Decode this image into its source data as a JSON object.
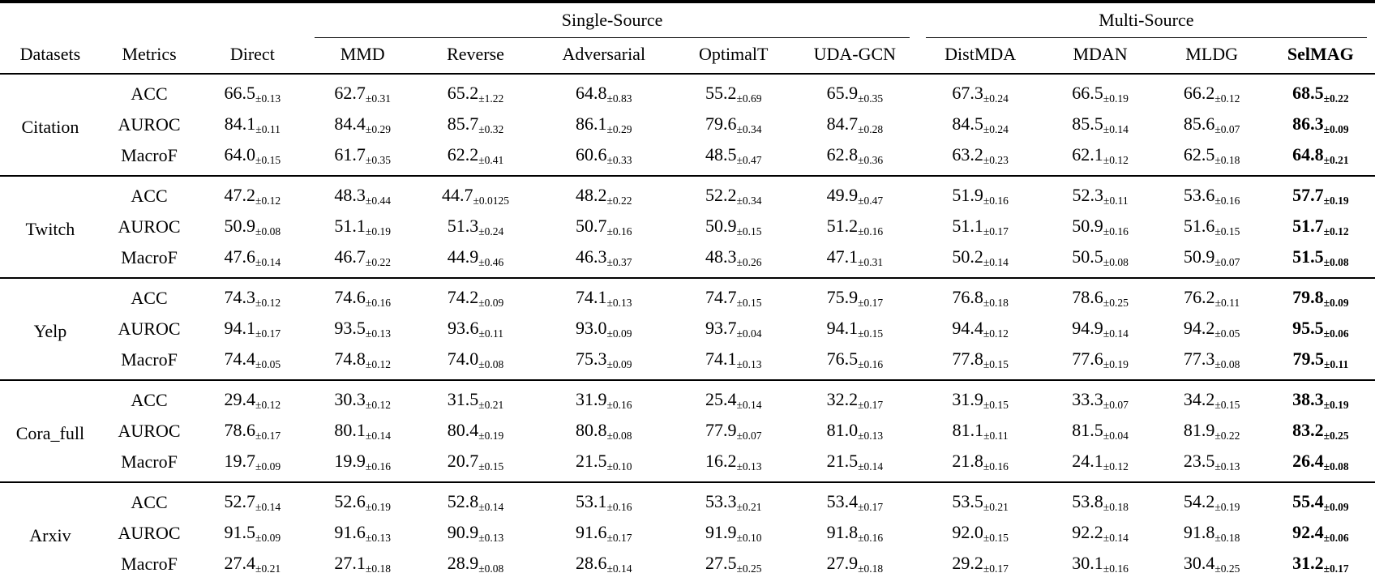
{
  "table": {
    "groups": [
      {
        "label": "Single-Source",
        "span": 5
      },
      {
        "label": "Multi-Source",
        "span": 4
      }
    ],
    "columns": [
      {
        "label": "Datasets"
      },
      {
        "label": "Metrics"
      },
      {
        "label": "Direct"
      },
      {
        "label": "MMD"
      },
      {
        "label": "Reverse"
      },
      {
        "label": "Adversarial"
      },
      {
        "label": "OptimalT"
      },
      {
        "label": "UDA-GCN"
      },
      {
        "label": "DistMDA"
      },
      {
        "label": "MDAN"
      },
      {
        "label": "MLDG"
      },
      {
        "label": "SelMAG"
      }
    ],
    "rows": [
      {
        "dataset": "Citation",
        "metrics": [
          {
            "metric": "ACC",
            "cells": [
              "66.5±0.13",
              "62.7±0.31",
              "65.2±1.22",
              "64.8±0.83",
              "55.2±0.69",
              "65.9±0.35",
              "67.3±0.24",
              "66.5±0.19",
              "66.2±0.12",
              "68.5±0.22"
            ]
          },
          {
            "metric": "AUROC",
            "cells": [
              "84.1±0.11",
              "84.4±0.29",
              "85.7±0.32",
              "86.1±0.29",
              "79.6±0.34",
              "84.7±0.28",
              "84.5±0.24",
              "85.5±0.14",
              "85.6±0.07",
              "86.3±0.09"
            ]
          },
          {
            "metric": "MacroF",
            "cells": [
              "64.0±0.15",
              "61.7±0.35",
              "62.2±0.41",
              "60.6±0.33",
              "48.5±0.47",
              "62.8±0.36",
              "63.2±0.23",
              "62.1±0.12",
              "62.5±0.18",
              "64.8±0.21"
            ]
          }
        ]
      },
      {
        "dataset": "Twitch",
        "metrics": [
          {
            "metric": "ACC",
            "cells": [
              "47.2±0.12",
              "48.3±0.44",
              "44.7±0.0125",
              "48.2±0.22",
              "52.2±0.34",
              "49.9±0.47",
              "51.9±0.16",
              "52.3±0.11",
              "53.6±0.16",
              "57.7±0.19"
            ]
          },
          {
            "metric": "AUROC",
            "cells": [
              "50.9±0.08",
              "51.1±0.19",
              "51.3±0.24",
              "50.7±0.16",
              "50.9±0.15",
              "51.2±0.16",
              "51.1±0.17",
              "50.9±0.16",
              "51.6±0.15",
              "51.7±0.12"
            ]
          },
          {
            "metric": "MacroF",
            "cells": [
              "47.6±0.14",
              "46.7±0.22",
              "44.9±0.46",
              "46.3±0.37",
              "48.3±0.26",
              "47.1±0.31",
              "50.2±0.14",
              "50.5±0.08",
              "50.9±0.07",
              "51.5±0.08"
            ]
          }
        ]
      },
      {
        "dataset": "Yelp",
        "metrics": [
          {
            "metric": "ACC",
            "cells": [
              "74.3±0.12",
              "74.6±0.16",
              "74.2±0.09",
              "74.1±0.13",
              "74.7±0.15",
              "75.9±0.17",
              "76.8±0.18",
              "78.6±0.25",
              "76.2±0.11",
              "79.8±0.09"
            ]
          },
          {
            "metric": "AUROC",
            "cells": [
              "94.1±0.17",
              "93.5±0.13",
              "93.6±0.11",
              "93.0±0.09",
              "93.7±0.04",
              "94.1±0.15",
              "94.4±0.12",
              "94.9±0.14",
              "94.2±0.05",
              "95.5±0.06"
            ]
          },
          {
            "metric": "MacroF",
            "cells": [
              "74.4±0.05",
              "74.8±0.12",
              "74.0±0.08",
              "75.3±0.09",
              "74.1±0.13",
              "76.5±0.16",
              "77.8±0.15",
              "77.6±0.19",
              "77.3±0.08",
              "79.5±0.11"
            ]
          }
        ]
      },
      {
        "dataset": "Cora_full",
        "metrics": [
          {
            "metric": "ACC",
            "cells": [
              "29.4±0.12",
              "30.3±0.12",
              "31.5±0.21",
              "31.9±0.16",
              "25.4±0.14",
              "32.2±0.17",
              "31.9±0.15",
              "33.3±0.07",
              "34.2±0.15",
              "38.3±0.19"
            ]
          },
          {
            "metric": "AUROC",
            "cells": [
              "78.6±0.17",
              "80.1±0.14",
              "80.4±0.19",
              "80.8±0.08",
              "77.9±0.07",
              "81.0±0.13",
              "81.1±0.11",
              "81.5±0.04",
              "81.9±0.22",
              "83.2±0.25"
            ]
          },
          {
            "metric": "MacroF",
            "cells": [
              "19.7±0.09",
              "19.9±0.16",
              "20.7±0.15",
              "21.5±0.10",
              "16.2±0.13",
              "21.5±0.14",
              "21.8±0.16",
              "24.1±0.12",
              "23.5±0.13",
              "26.4±0.08"
            ]
          }
        ]
      },
      {
        "dataset": "Arxiv",
        "metrics": [
          {
            "metric": "ACC",
            "cells": [
              "52.7±0.14",
              "52.6±0.19",
              "52.8±0.14",
              "53.1±0.16",
              "53.3±0.21",
              "53.4±0.17",
              "53.5±0.21",
              "53.8±0.18",
              "54.2±0.19",
              "55.4±0.09"
            ]
          },
          {
            "metric": "AUROC",
            "cells": [
              "91.5±0.09",
              "91.6±0.13",
              "90.9±0.13",
              "91.6±0.17",
              "91.9±0.10",
              "91.8±0.16",
              "92.0±0.15",
              "92.2±0.14",
              "91.8±0.18",
              "92.4±0.06"
            ]
          },
          {
            "metric": "MacroF",
            "cells": [
              "27.4±0.21",
              "27.1±0.18",
              "28.9±0.08",
              "28.6±0.14",
              "27.5±0.25",
              "27.9±0.18",
              "29.2±0.17",
              "30.1±0.16",
              "30.4±0.25",
              "31.2±0.17"
            ]
          }
        ]
      }
    ]
  }
}
